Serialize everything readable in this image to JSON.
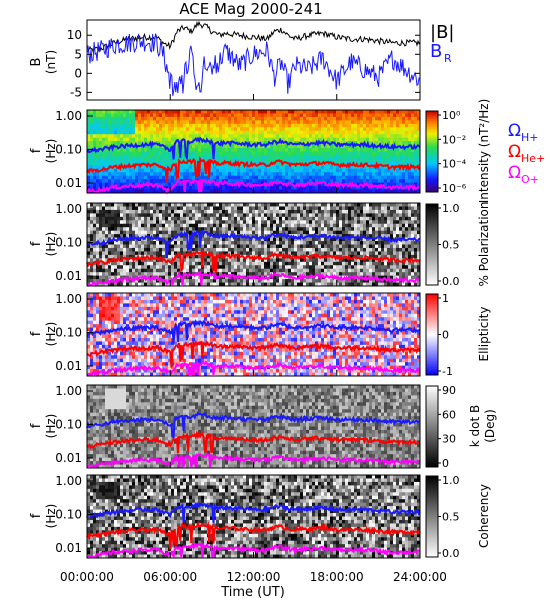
{
  "title": "ACE Mag 2000-241",
  "colors": {
    "B_total": "#000000",
    "B_R": "#1a1aff",
    "H": "#1a1aff",
    "He": "#ff0000",
    "O": "#ff00ff"
  },
  "chart_data": [
    {
      "type": "line",
      "panel": "B",
      "ylabel_main": "B",
      "ylabel_unit": "(nT)",
      "yticks": [
        10,
        5,
        0,
        -5
      ],
      "ylim": [
        -7,
        14
      ],
      "xlim": [
        0,
        24
      ],
      "legend": {
        "total_main": "|B|",
        "radial_main": "B",
        "radial_sub": "R"
      },
      "series": [
        {
          "name": "|B|",
          "x": [
            0,
            1,
            2,
            3,
            4,
            5,
            5.5,
            6,
            6.5,
            7,
            7.5,
            8,
            8.5,
            9,
            9.5,
            10,
            11,
            12,
            13,
            13.5,
            14,
            14.5,
            15,
            16,
            17,
            18,
            19,
            20,
            21,
            22,
            23,
            24
          ],
          "values": [
            6,
            6.5,
            8,
            9,
            9.5,
            9.5,
            8,
            7,
            11,
            12,
            11,
            13,
            12.5,
            11,
            10,
            10.5,
            10,
            9.5,
            9,
            11,
            11.5,
            10,
            9,
            10,
            10.5,
            9.5,
            9,
            9,
            8.5,
            8,
            8,
            8
          ]
        },
        {
          "name": "B_R",
          "x": [
            0,
            1,
            2,
            3,
            4,
            5,
            5.5,
            6,
            6.5,
            7,
            7.5,
            8,
            8.5,
            9,
            9.5,
            10,
            11,
            12,
            13,
            13.5,
            14,
            14.5,
            15,
            16,
            17,
            18,
            19,
            20,
            21,
            22,
            23,
            24
          ],
          "values": [
            5,
            6,
            7.5,
            8,
            8.5,
            8,
            5,
            -2,
            -5,
            0,
            6,
            -5,
            4,
            2,
            3,
            6,
            2,
            5,
            6,
            -1,
            3,
            -3,
            2,
            1,
            4,
            -2,
            3,
            1,
            -1,
            4,
            1,
            -2
          ]
        }
      ]
    },
    {
      "type": "heatmap",
      "panel": "power",
      "ylabel_main": "f",
      "ylabel_unit": "(Hz)",
      "yticks": [
        "1.00",
        "0.10",
        "0.01"
      ],
      "colorbar": {
        "label": "Intensity (nT²/Hz)",
        "ticks": [
          "10⁰",
          "10⁻²",
          "10⁻⁴",
          "10⁻⁶"
        ]
      },
      "legend": [
        {
          "symbol": "Ω",
          "sub": "H+"
        },
        {
          "symbol": "Ω",
          "sub": "He+"
        },
        {
          "symbol": "Ω",
          "sub": "O+"
        }
      ]
    },
    {
      "type": "heatmap",
      "panel": "polarization",
      "ylabel_main": "f",
      "ylabel_unit": "(Hz)",
      "yticks": [
        "1.00",
        "0.10",
        "0.01"
      ],
      "colorbar": {
        "label": "% Polarization",
        "ticks": [
          "1.0",
          "0.5",
          "0.0"
        ]
      }
    },
    {
      "type": "heatmap",
      "panel": "ellipticity",
      "ylabel_main": "f",
      "ylabel_unit": "(Hz)",
      "yticks": [
        "1.00",
        "0.10",
        "0.01"
      ],
      "colorbar": {
        "label": "Ellipticity",
        "ticks": [
          "1",
          "0",
          "-1"
        ]
      }
    },
    {
      "type": "heatmap",
      "panel": "kdotb",
      "ylabel_main": "f",
      "ylabel_unit": "(Hz)",
      "yticks": [
        "1.00",
        "0.10",
        "0.01"
      ],
      "colorbar": {
        "label": "k dot B",
        "label2": "(Deg)",
        "ticks": [
          "90",
          "60",
          "30",
          "0"
        ]
      }
    },
    {
      "type": "heatmap",
      "panel": "coherency",
      "ylabel_main": "f",
      "ylabel_unit": "(Hz)",
      "yticks": [
        "1.00",
        "0.10",
        "0.01"
      ],
      "colorbar": {
        "label": "Coherency",
        "ticks": [
          "1.0",
          "0.5",
          "0.0"
        ]
      },
      "xticks": [
        "00:00:00",
        "06:00:00",
        "12:00:00",
        "18:00:00",
        "24:00:00"
      ],
      "xlabel": "Time (UT)"
    }
  ],
  "gyrofrequency_lines": {
    "x": [
      0,
      1,
      2,
      3,
      4,
      5,
      5.5,
      6,
      6.5,
      7,
      7.5,
      8,
      8.5,
      9,
      9.5,
      10,
      11,
      12,
      13,
      13.5,
      14,
      14.5,
      15,
      16,
      17,
      18,
      19,
      20,
      21,
      22,
      23,
      24
    ],
    "H_plus": [
      0.09,
      0.1,
      0.12,
      0.13,
      0.14,
      0.14,
      0.12,
      0.1,
      0.17,
      0.18,
      0.17,
      0.2,
      0.19,
      0.17,
      0.15,
      0.16,
      0.15,
      0.14,
      0.14,
      0.17,
      0.17,
      0.15,
      0.14,
      0.15,
      0.16,
      0.14,
      0.14,
      0.14,
      0.13,
      0.12,
      0.12,
      0.12
    ]
  }
}
